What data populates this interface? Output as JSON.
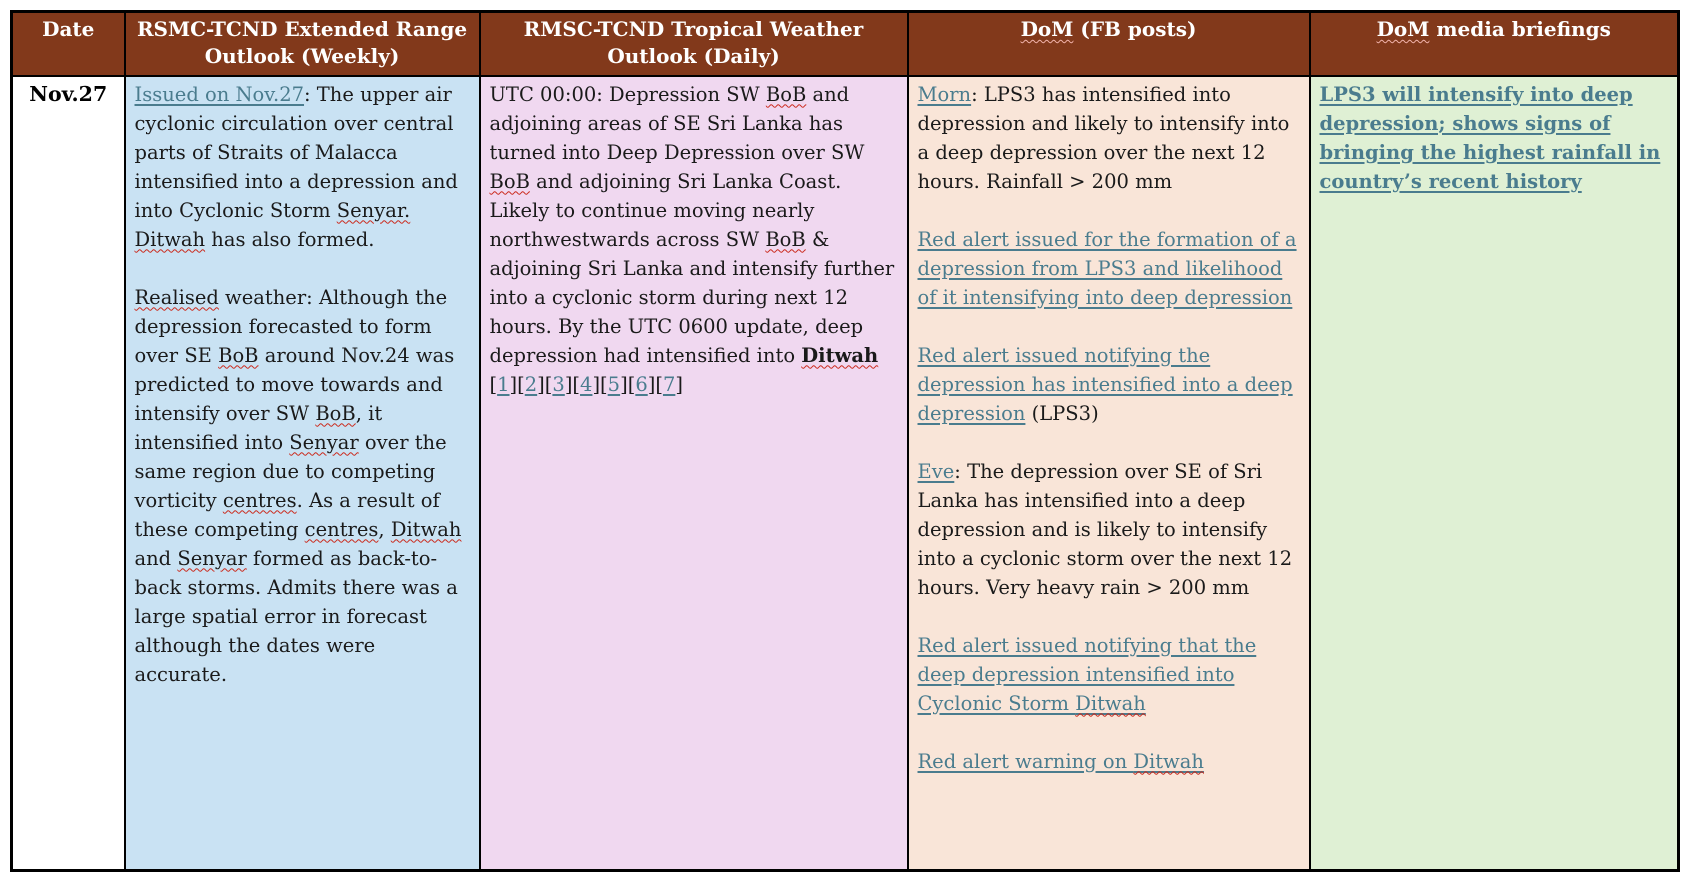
{
  "colors": {
    "header-bg": "#82391B",
    "header-text": "#FFFFFF",
    "col-blue": "#C9E2F3",
    "col-pink": "#F0D8F0",
    "col-peach": "#F9E5D8",
    "col-green": "#DFF0D4",
    "link": "#4A7C8E",
    "squiggle": "#CB2A1D",
    "border": "#000000",
    "body-text": "#1A1A1A"
  },
  "table": {
    "headers": [
      {
        "runs": [
          {
            "t": "Date"
          }
        ]
      },
      {
        "runs": [
          {
            "t": "RSMC-TCND Extended Range Outlook (Weekly)"
          }
        ]
      },
      {
        "runs": [
          {
            "t": "RMSC-TCND Tropical Weather Outlook (Daily)"
          }
        ]
      },
      {
        "runs": [
          {
            "t": "DoM",
            "squiggle": true
          },
          {
            "t": " (FB posts)"
          }
        ]
      },
      {
        "runs": [
          {
            "t": "DoM",
            "squiggle": true
          },
          {
            "t": " media briefings"
          }
        ]
      }
    ],
    "row": {
      "date": "Nov.27",
      "extended_outlook": [
        [
          {
            "t": "Issued on Nov.27",
            "link": true
          },
          {
            "t": ": The upper air cyclonic circulation over central parts of Straits of Malacca intensified into a depression and into Cyclonic Storm "
          },
          {
            "t": "Senyar.",
            "squiggle": true
          },
          {
            "t": " "
          },
          {
            "t": "Ditwah",
            "squiggle": true
          },
          {
            "t": " has also formed."
          }
        ],
        [
          {
            "t": "Realised",
            "squiggle": true
          },
          {
            "t": " weather: Although the depression forecasted to form over SE "
          },
          {
            "t": "BoB",
            "squiggle": true
          },
          {
            "t": " around Nov.24 was predicted to move towards and intensify over SW "
          },
          {
            "t": "BoB",
            "squiggle": true
          },
          {
            "t": ", it intensified into "
          },
          {
            "t": "Senyar",
            "squiggle": true
          },
          {
            "t": " over the same region due to competing vorticity "
          },
          {
            "t": "centres",
            "squiggle": true
          },
          {
            "t": ". As a result of these competing "
          },
          {
            "t": "centres",
            "squiggle": true
          },
          {
            "t": ", "
          },
          {
            "t": "Ditwah",
            "squiggle": true
          },
          {
            "t": " and "
          },
          {
            "t": "Senyar",
            "squiggle": true
          },
          {
            "t": " formed as back-to-back storms. Admits there was a large spatial error in forecast although the dates were accurate."
          }
        ]
      ],
      "daily_outlook": [
        [
          {
            "t": "UTC 00:00: Depression SW "
          },
          {
            "t": "BoB",
            "squiggle": true
          },
          {
            "t": " and adjoining areas of SE Sri Lanka has turned into Deep Depression over SW "
          },
          {
            "t": "BoB",
            "squiggle": true
          },
          {
            "t": " and adjoining Sri Lanka Coast. Likely to continue moving nearly northwestwards across SW "
          },
          {
            "t": "BoB",
            "squiggle": true
          },
          {
            "t": " &"
          },
          {
            "br": true
          },
          {
            "t": "adjoining Sri Lanka and intensify further into a cyclonic storm during next 12 hours. By the UTC 0600 update, deep depression had intensified into "
          },
          {
            "t": "Ditwah",
            "bold": true,
            "squiggle": true
          },
          {
            "br": true
          },
          {
            "t": "["
          },
          {
            "t": "1",
            "link": true
          },
          {
            "t": "]["
          },
          {
            "t": "2",
            "link": true
          },
          {
            "t": "]["
          },
          {
            "t": "3",
            "link": true
          },
          {
            "t": "]["
          },
          {
            "t": "4",
            "link": true
          },
          {
            "t": "]["
          },
          {
            "t": "5",
            "link": true
          },
          {
            "t": "]["
          },
          {
            "t": "6",
            "link": true
          },
          {
            "t": "]["
          },
          {
            "t": "7",
            "link": true
          },
          {
            "t": "]"
          }
        ]
      ],
      "dom_fb_posts": [
        [
          {
            "t": "Morn",
            "link": true
          },
          {
            "t": ": LPS3 has intensified into depression and likely to intensify into a deep depression over the next 12 hours. Rainfall > 200 mm"
          }
        ],
        [
          {
            "t": "Red alert issued for the formation of a depression from LPS3 and likelihood of it intensifying into deep depression",
            "link": true
          }
        ],
        [
          {
            "t": "Red alert issued notifying the depression has intensified into a deep depression",
            "link": true
          },
          {
            "t": " (LPS3)"
          }
        ],
        [
          {
            "t": "Eve",
            "link": true
          },
          {
            "t": ": The depression over SE of Sri Lanka has intensified into a deep depression and is likely to intensify into a cyclonic storm over the next 12 hours. Very heavy rain > 200 mm"
          }
        ],
        [
          {
            "t": "Red alert issued notifying that the deep depression intensified into Cyclonic Storm ",
            "link": true
          },
          {
            "t": "Ditwah",
            "link": true,
            "squiggle": true
          }
        ],
        [
          {
            "t": "Red alert warning on ",
            "link": true
          },
          {
            "t": "Ditwah",
            "link": true,
            "squiggle": true
          }
        ]
      ],
      "dom_media_briefings": [
        [
          {
            "t": "LPS3 will intensify into deep depression; shows signs of bringing the highest rainfall in country’s recent history",
            "link": true,
            "bold": true
          }
        ]
      ]
    }
  }
}
